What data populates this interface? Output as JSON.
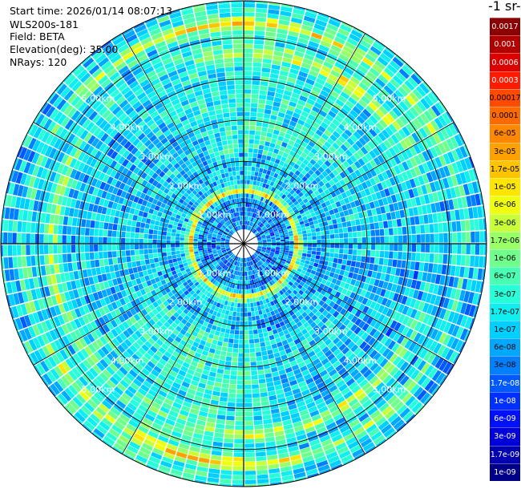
{
  "header": {
    "start_time": "Start time: 2026/01/14 08:07:13",
    "instrument": "WLS200s-181",
    "field": "Field: BETA",
    "elevation": "Elevation(deg): 35.00",
    "nrays": "NRays: 120"
  },
  "units_label": "-1 sr-",
  "chart_data": {
    "type": "heatmap",
    "projection": "polar-ppi",
    "title": "",
    "field": "BETA",
    "nrays": 120,
    "range_rings_km": [
      1.0,
      2.0,
      3.0,
      4.0,
      5.0
    ],
    "ring_labels": [
      "1.00km",
      "2.00km",
      "3.00km",
      "4.00km",
      "5.00km"
    ],
    "max_range_km": 5.9,
    "azimuth_spokes_deg": [
      0,
      30,
      60,
      90,
      120,
      150,
      180,
      210,
      240,
      270,
      300,
      330
    ],
    "blind_range_km": 0.35,
    "aerosol_layer_ranges_km": [
      1.25,
      4.6,
      5.3
    ],
    "colorbar": {
      "orientation": "vertical",
      "scale": "log",
      "tick_labels_top_to_bottom": [
        "0.0017",
        "0.001",
        "0.0006",
        "0.0003",
        "0.00017",
        "0.0001",
        "6e-05",
        "3e-05",
        "1.7e-05",
        "1e-05",
        "6e-06",
        "3e-06",
        "1.7e-06",
        "1e-06",
        "6e-07",
        "3e-07",
        "1.7e-07",
        "1e-07",
        "6e-08",
        "3e-08",
        "1.7e-08",
        "1e-08",
        "6e-09",
        "3e-09",
        "1.7e-09",
        "1e-09"
      ],
      "colors_top_to_bottom": [
        "#8b0000",
        "#b00000",
        "#dd0000",
        "#ff1a00",
        "#ff4a00",
        "#ff6a00",
        "#ff8800",
        "#ffa200",
        "#ffc400",
        "#ffe600",
        "#f0ff10",
        "#c8ff38",
        "#98ff66",
        "#70ff8c",
        "#48ffb4",
        "#28ffd8",
        "#10eef0",
        "#00d0ff",
        "#00a8ff",
        "#0080ff",
        "#0058ff",
        "#0030ff",
        "#0010f8",
        "#0000d8",
        "#0000b0",
        "#000088"
      ]
    }
  }
}
